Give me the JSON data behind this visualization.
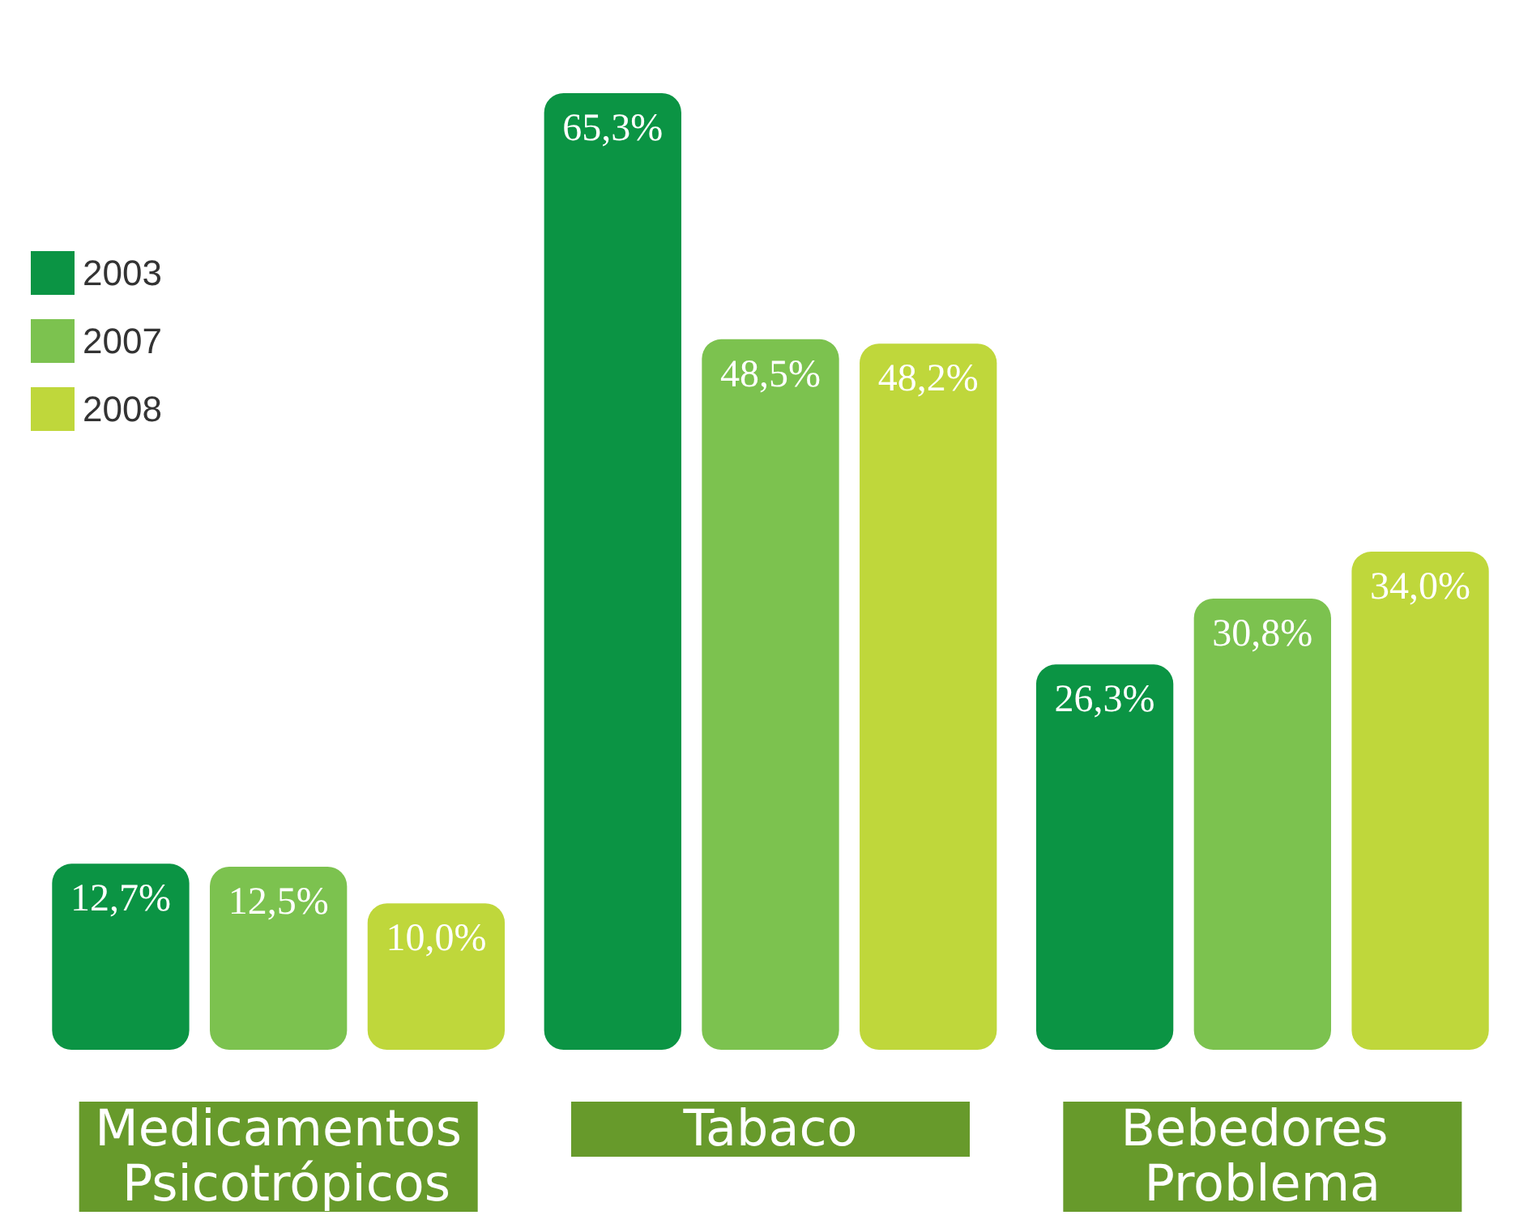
{
  "chart_data": {
    "type": "bar",
    "categories": [
      "Medicamentos Psicotrópicos",
      "Tabaco",
      "Bebedores Problema"
    ],
    "series": [
      {
        "name": "2003",
        "color": "#0b9444",
        "values": [
          12.7,
          65.3,
          26.3
        ],
        "value_labels": [
          "12,7%",
          "65,3%",
          "26,3%"
        ]
      },
      {
        "name": "2007",
        "color": "#7cc24f",
        "values": [
          12.5,
          48.5,
          30.8
        ],
        "value_labels": [
          "12,5%",
          "48,5%",
          "30,8%"
        ]
      },
      {
        "name": "2008",
        "color": "#bfd73b",
        "values": [
          10.0,
          48.2,
          34.0
        ],
        "value_labels": [
          "10,0%",
          "48,2%",
          "34,0%"
        ]
      }
    ],
    "legend": "left",
    "grid": false
  }
}
